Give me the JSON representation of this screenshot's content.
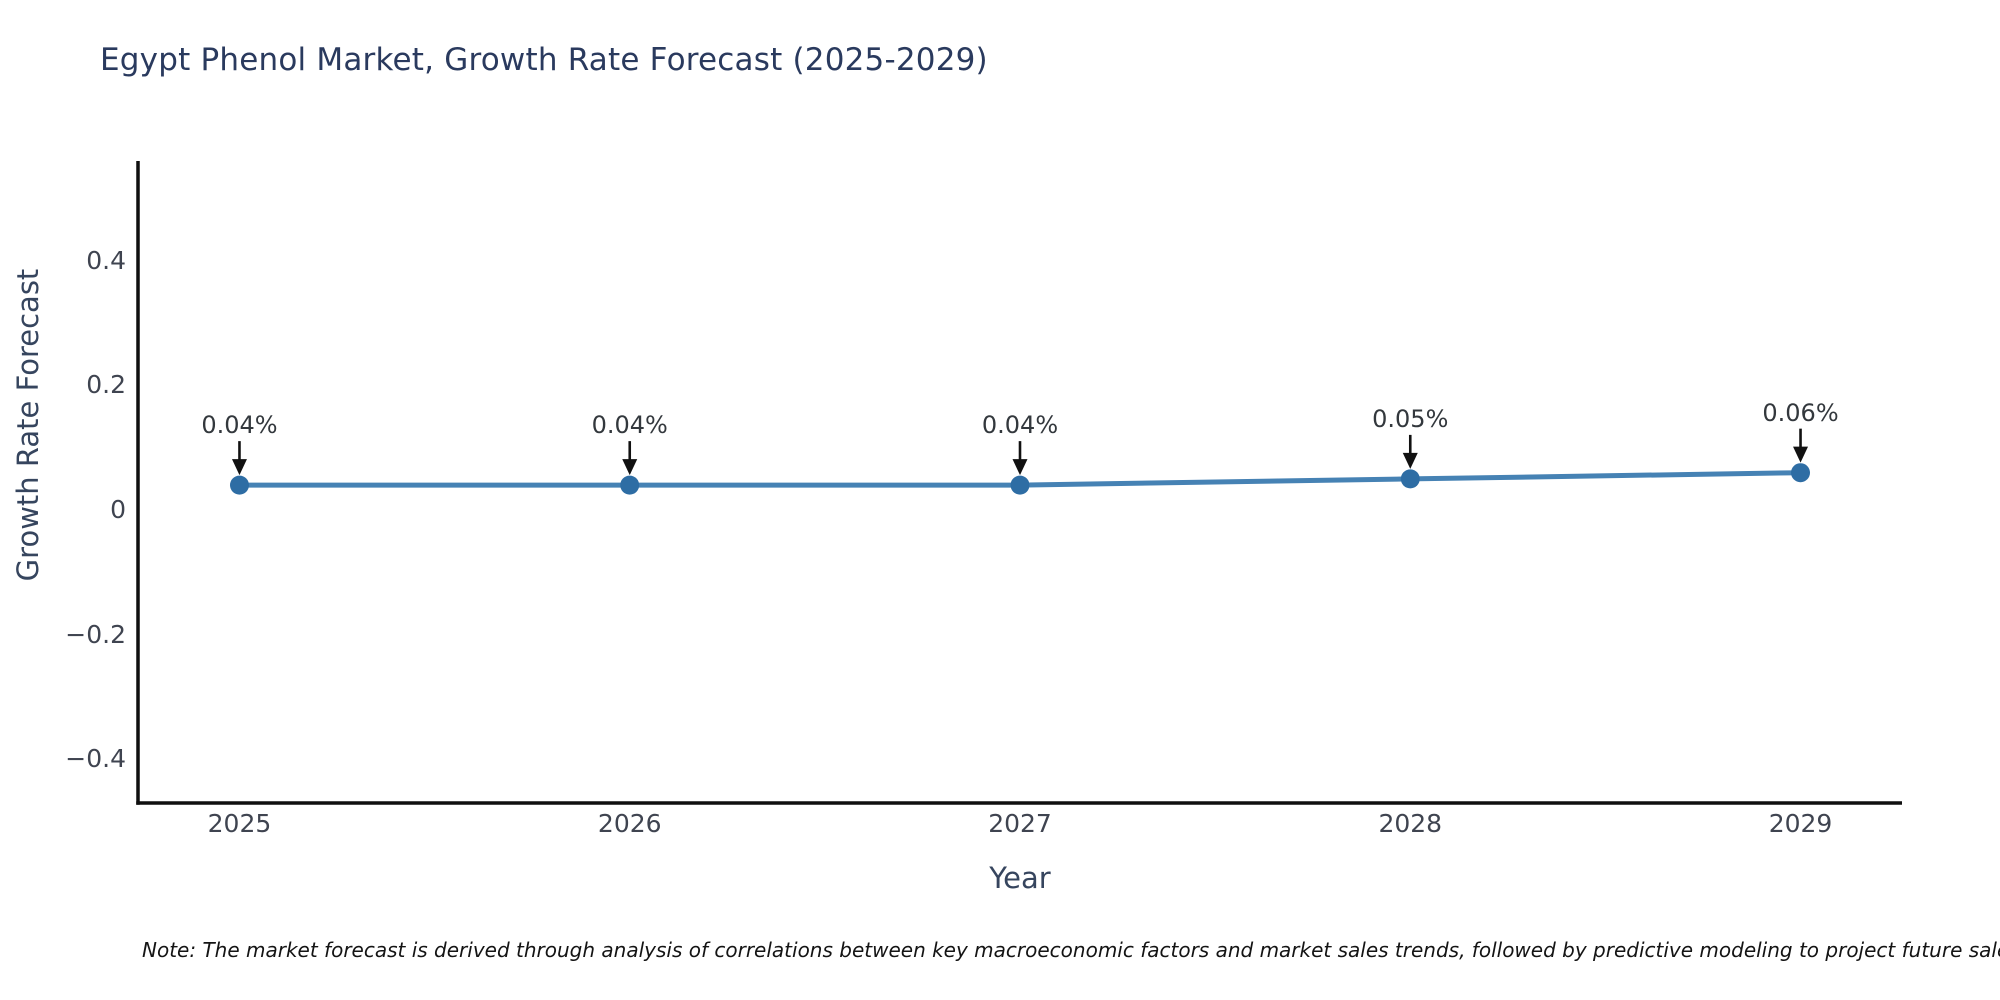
{
  "chart_data": {
    "type": "line",
    "title": "Egypt Phenol Market, Growth Rate Forecast (2025-2029)",
    "xlabel": "Year",
    "ylabel": "Growth Rate Forecast",
    "x": [
      2025,
      2026,
      2027,
      2028,
      2029
    ],
    "categories": [
      "2025",
      "2026",
      "2027",
      "2028",
      "2029"
    ],
    "series": [
      {
        "name": "Growth Rate Forecast",
        "values": [
          0.04,
          0.04,
          0.04,
          0.05,
          0.06
        ],
        "point_labels": [
          "0.04%",
          "0.04%",
          "0.04%",
          "0.05%",
          "0.06%"
        ]
      }
    ],
    "yticks": {
      "values": [
        0.4,
        0.2,
        0,
        -0.2,
        -0.4
      ],
      "labels": [
        "0.4",
        "0.2",
        "0",
        "−0.2",
        "−0.4"
      ]
    },
    "xlim": [
      2024.74,
      2029.26
    ],
    "ylim": [
      -0.47,
      0.56
    ],
    "grid": false,
    "legend": "none",
    "line_color": "#4682b4",
    "marker_color": "#2e6da4",
    "annotation_color": "#111111",
    "note": "Note: The market forecast is derived through analysis of correlations between key macroeconomic factors and market sales trends, followed by predictive modeling to project future sales"
  }
}
